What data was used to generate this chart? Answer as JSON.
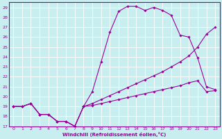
{
  "xlabel": "Windchill (Refroidissement éolien,°C)",
  "bg_color": "#c8eef0",
  "grid_color": "#ffffff",
  "line_color": "#990099",
  "xlim": [
    -0.5,
    23.5
  ],
  "ylim": [
    17,
    29.5
  ],
  "xticks": [
    0,
    1,
    2,
    3,
    4,
    5,
    6,
    7,
    8,
    9,
    10,
    11,
    12,
    13,
    14,
    15,
    16,
    17,
    18,
    19,
    20,
    21,
    22,
    23
  ],
  "yticks": [
    17,
    18,
    19,
    20,
    21,
    22,
    23,
    24,
    25,
    26,
    27,
    28,
    29
  ],
  "series1_x": [
    0,
    1,
    2,
    3,
    4,
    5,
    6,
    7,
    8,
    9,
    10,
    11,
    12,
    13,
    14,
    15,
    16,
    17,
    18,
    19,
    20,
    21,
    22,
    23
  ],
  "series1_y": [
    19.0,
    19.0,
    19.3,
    18.2,
    18.2,
    17.5,
    17.5,
    17.0,
    19.0,
    20.5,
    23.5,
    26.5,
    28.6,
    29.1,
    29.1,
    28.7,
    29.0,
    28.7,
    28.2,
    26.2,
    26.0,
    23.9,
    21.0,
    20.7
  ],
  "series2_x": [
    0,
    1,
    2,
    3,
    4,
    5,
    6,
    7,
    8,
    9,
    10,
    11,
    12,
    13,
    14,
    15,
    16,
    17,
    18,
    19,
    20,
    21,
    22,
    23
  ],
  "series2_y": [
    19.0,
    19.0,
    19.3,
    18.2,
    18.2,
    17.5,
    17.5,
    17.0,
    19.0,
    19.3,
    19.7,
    20.1,
    20.5,
    20.9,
    21.3,
    21.7,
    22.1,
    22.5,
    23.0,
    23.5,
    24.1,
    25.0,
    26.3,
    27.0
  ],
  "series3_x": [
    0,
    1,
    2,
    3,
    4,
    5,
    6,
    7,
    8,
    9,
    10,
    11,
    12,
    13,
    14,
    15,
    16,
    17,
    18,
    19,
    20,
    21,
    22,
    23
  ],
  "series3_y": [
    19.0,
    19.0,
    19.3,
    18.2,
    18.2,
    17.5,
    17.5,
    17.0,
    19.0,
    19.1,
    19.3,
    19.5,
    19.7,
    19.9,
    20.1,
    20.3,
    20.5,
    20.7,
    20.9,
    21.1,
    21.4,
    21.6,
    20.5,
    20.6
  ]
}
